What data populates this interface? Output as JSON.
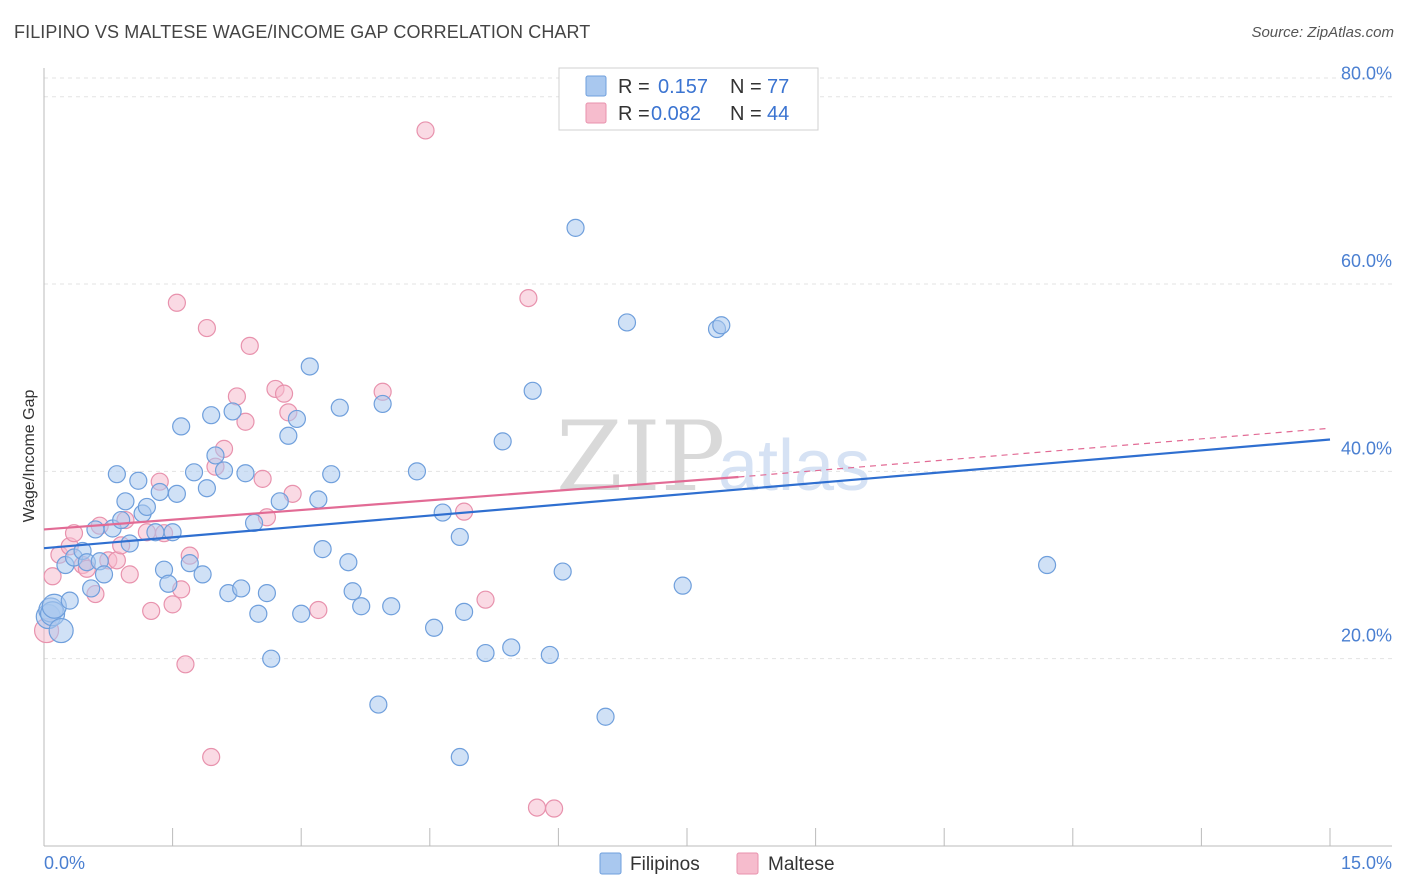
{
  "title": "FILIPINO VS MALTESE WAGE/INCOME GAP CORRELATION CHART",
  "source": "Source: ZipAtlas.com",
  "watermark": {
    "zip": "ZIP",
    "atlas": "atlas"
  },
  "legend_box": {
    "rows": [
      {
        "r_label": "R =",
        "r_value": "0.157",
        "n_label": "N =",
        "n_value": "77"
      },
      {
        "r_label": "R =",
        "r_value": "0.082",
        "n_label": "N =",
        "n_value": "44"
      }
    ]
  },
  "chart_data": {
    "type": "scatter",
    "title": "FILIPINO VS MALTESE WAGE/INCOME GAP CORRELATION CHART",
    "xlabel": "",
    "ylabel": "Wage/Income Gap",
    "xlim": [
      0,
      15
    ],
    "ylim": [
      0,
      82
    ],
    "x_tick_labels": [
      "0.0%",
      "15.0%"
    ],
    "y_ticks": [
      20,
      40,
      60,
      80
    ],
    "y_tick_labels": [
      "20.0%",
      "40.0%",
      "60.0%",
      "80.0%"
    ],
    "grid": true,
    "legend_position": "top-center and bottom",
    "colors": {
      "filipinos_fill": "#a9c8ef",
      "filipinos_stroke": "#6f9fdc",
      "filipinos_line": "#2f6fd0",
      "maltese_fill": "#f6bccd",
      "maltese_stroke": "#e892ad",
      "maltese_line": "#e26b95",
      "tick_text": "#4a7fd1"
    },
    "series": [
      {
        "name": "Filipinos",
        "r": 0.157,
        "n": 77,
        "trend": {
          "x": [
            0,
            15
          ],
          "y": [
            31.8,
            43.4
          ]
        },
        "points": [
          [
            0.05,
            24.5
          ],
          [
            0.08,
            25.2
          ],
          [
            0.1,
            24.8
          ],
          [
            0.12,
            25.6
          ],
          [
            0.2,
            23.0
          ],
          [
            0.25,
            30.0
          ],
          [
            0.3,
            26.2
          ],
          [
            0.35,
            30.8
          ],
          [
            0.45,
            31.5
          ],
          [
            0.5,
            30.3
          ],
          [
            0.55,
            27.5
          ],
          [
            0.6,
            33.8
          ],
          [
            0.65,
            30.4
          ],
          [
            0.7,
            29.0
          ],
          [
            0.8,
            33.9
          ],
          [
            0.85,
            39.7
          ],
          [
            0.9,
            34.8
          ],
          [
            0.95,
            36.8
          ],
          [
            1.0,
            32.3
          ],
          [
            1.1,
            39.0
          ],
          [
            1.15,
            35.5
          ],
          [
            1.2,
            36.2
          ],
          [
            1.3,
            33.5
          ],
          [
            1.35,
            37.8
          ],
          [
            1.4,
            29.5
          ],
          [
            1.45,
            28.0
          ],
          [
            1.5,
            33.5
          ],
          [
            1.55,
            37.6
          ],
          [
            1.6,
            44.8
          ],
          [
            1.7,
            30.2
          ],
          [
            1.75,
            39.9
          ],
          [
            1.85,
            29.0
          ],
          [
            1.9,
            38.2
          ],
          [
            1.95,
            46.0
          ],
          [
            2.0,
            41.7
          ],
          [
            2.1,
            40.1
          ],
          [
            2.15,
            27.0
          ],
          [
            2.2,
            46.4
          ],
          [
            2.3,
            27.5
          ],
          [
            2.35,
            39.8
          ],
          [
            2.45,
            34.5
          ],
          [
            2.5,
            24.8
          ],
          [
            2.6,
            27.0
          ],
          [
            2.65,
            20.0
          ],
          [
            2.75,
            36.8
          ],
          [
            2.85,
            43.8
          ],
          [
            2.95,
            45.6
          ],
          [
            3.0,
            24.8
          ],
          [
            3.1,
            51.2
          ],
          [
            3.2,
            37.0
          ],
          [
            3.25,
            31.7
          ],
          [
            3.35,
            39.7
          ],
          [
            3.45,
            46.8
          ],
          [
            3.55,
            30.3
          ],
          [
            3.6,
            27.2
          ],
          [
            3.7,
            25.6
          ],
          [
            3.9,
            15.1
          ],
          [
            3.95,
            47.2
          ],
          [
            4.05,
            25.6
          ],
          [
            4.35,
            40.0
          ],
          [
            4.55,
            23.3
          ],
          [
            4.65,
            35.6
          ],
          [
            4.85,
            33.0
          ],
          [
            4.85,
            9.5
          ],
          [
            4.9,
            25.0
          ],
          [
            5.15,
            20.6
          ],
          [
            5.35,
            43.2
          ],
          [
            5.45,
            21.2
          ],
          [
            5.7,
            48.6
          ],
          [
            5.9,
            20.4
          ],
          [
            6.05,
            29.3
          ],
          [
            6.2,
            66.0
          ],
          [
            6.55,
            13.8
          ],
          [
            6.8,
            55.9
          ],
          [
            7.45,
            27.8
          ],
          [
            7.85,
            55.2
          ],
          [
            7.9,
            55.6
          ],
          [
            11.7,
            30.0
          ]
        ]
      },
      {
        "name": "Maltese",
        "r": 0.082,
        "n": 44,
        "trend": {
          "x": [
            0,
            8.1
          ],
          "y": [
            33.8,
            39.4
          ]
        },
        "trend_dashed": {
          "x": [
            8.1,
            15
          ],
          "y": [
            39.4,
            44.6
          ]
        },
        "points": [
          [
            0.03,
            23.0
          ],
          [
            0.1,
            28.8
          ],
          [
            0.18,
            31.1
          ],
          [
            0.3,
            32.0
          ],
          [
            0.35,
            33.4
          ],
          [
            0.45,
            30.0
          ],
          [
            0.5,
            29.6
          ],
          [
            0.6,
            26.9
          ],
          [
            0.65,
            34.2
          ],
          [
            0.75,
            30.5
          ],
          [
            0.85,
            30.5
          ],
          [
            0.9,
            32.1
          ],
          [
            0.95,
            34.8
          ],
          [
            1.0,
            29.0
          ],
          [
            1.2,
            33.5
          ],
          [
            1.25,
            25.1
          ],
          [
            1.35,
            38.9
          ],
          [
            1.4,
            33.4
          ],
          [
            1.5,
            25.8
          ],
          [
            1.55,
            58.0
          ],
          [
            1.6,
            27.4
          ],
          [
            1.65,
            19.4
          ],
          [
            1.7,
            31.0
          ],
          [
            1.9,
            55.3
          ],
          [
            1.95,
            9.5
          ],
          [
            2.0,
            40.5
          ],
          [
            2.1,
            42.4
          ],
          [
            2.25,
            48.0
          ],
          [
            2.35,
            45.3
          ],
          [
            2.4,
            53.4
          ],
          [
            2.55,
            39.2
          ],
          [
            2.6,
            35.1
          ],
          [
            2.7,
            48.8
          ],
          [
            2.8,
            48.3
          ],
          [
            2.85,
            46.3
          ],
          [
            2.9,
            37.6
          ],
          [
            3.2,
            25.2
          ],
          [
            3.95,
            48.5
          ],
          [
            4.45,
            76.4
          ],
          [
            4.9,
            35.7
          ],
          [
            5.15,
            26.3
          ],
          [
            5.65,
            58.5
          ],
          [
            5.75,
            4.1
          ],
          [
            5.95,
            4.0
          ]
        ]
      }
    ]
  },
  "bottom_legend": {
    "items": [
      {
        "label": "Filipinos"
      },
      {
        "label": "Maltese"
      }
    ]
  }
}
